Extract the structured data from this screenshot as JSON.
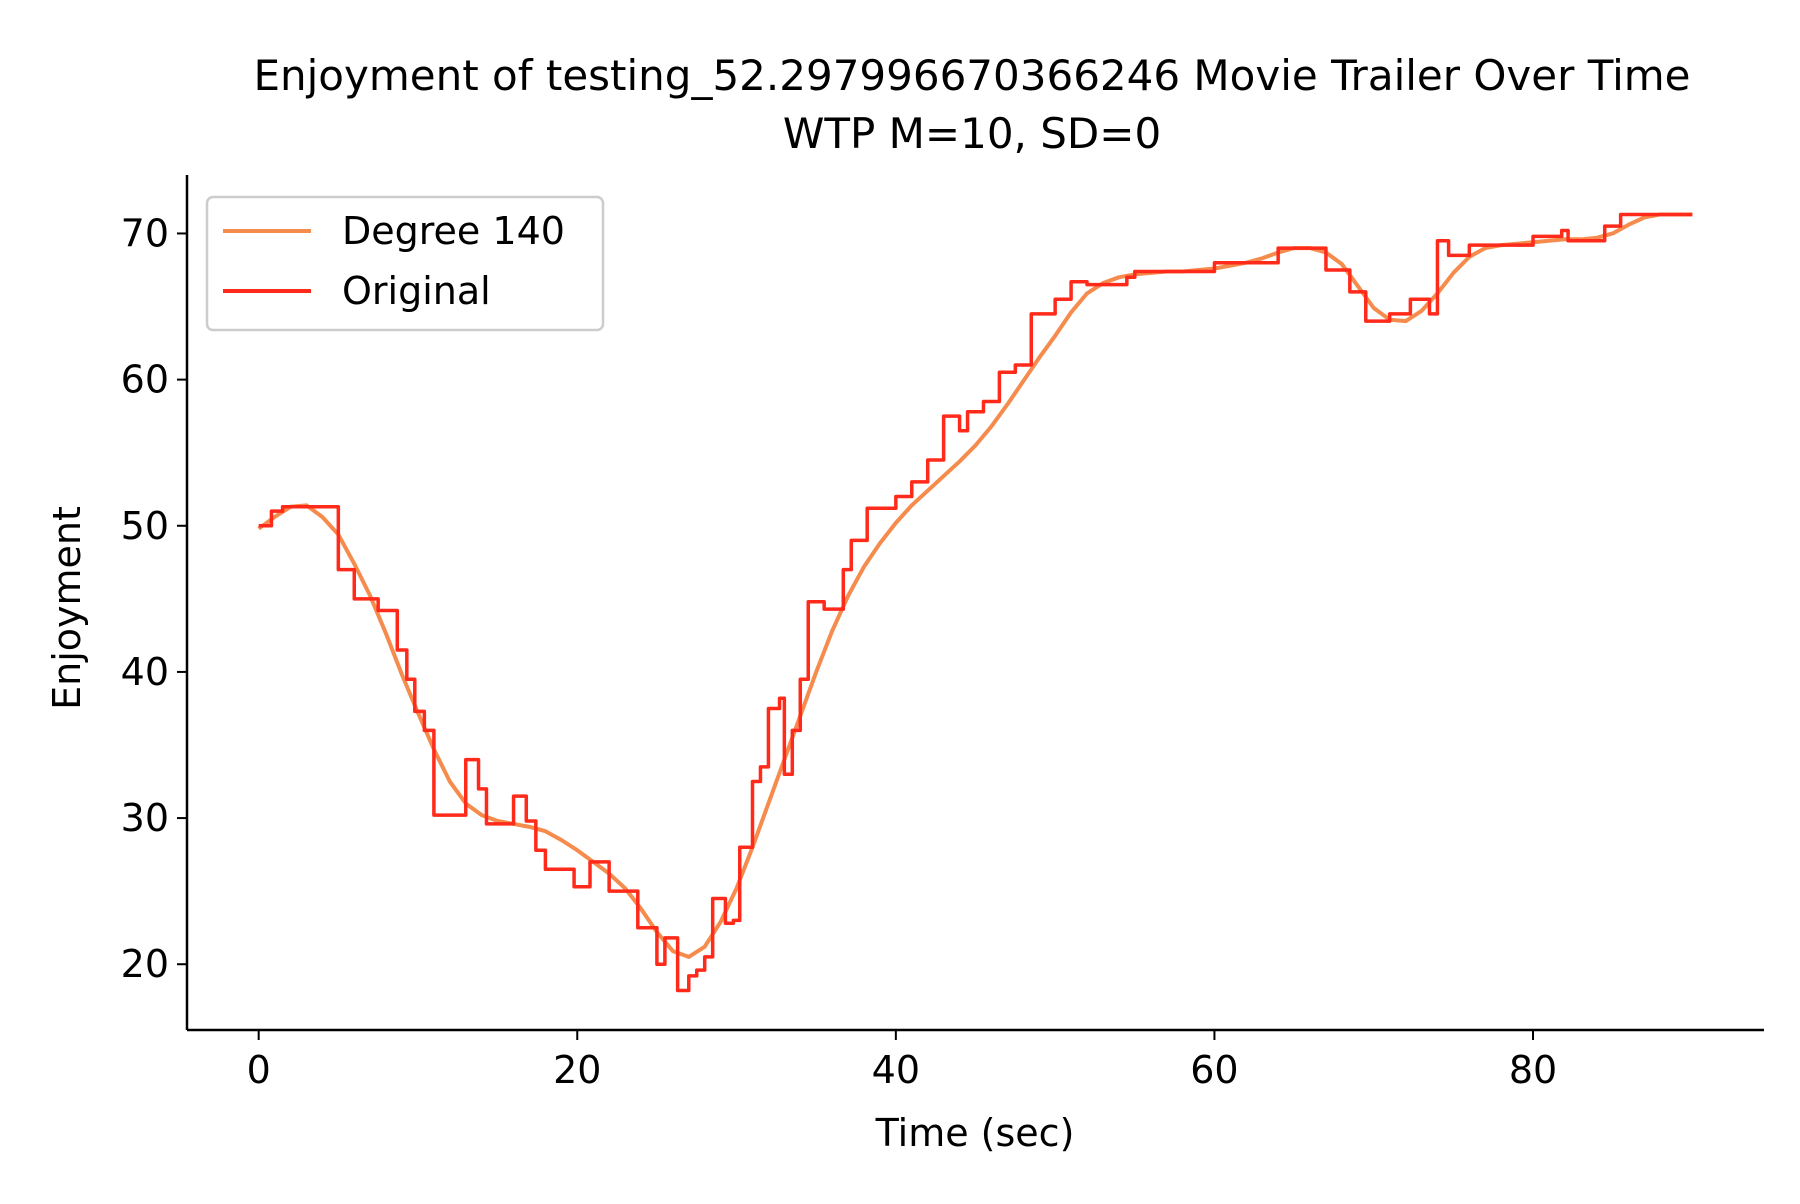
{
  "chart_data": {
    "type": "line",
    "title": "Enjoyment of testing_52.297996670366246 Movie Trailer Over Time",
    "subtitle": "WTP M=10, SD=0",
    "xlabel": "Time (sec)",
    "ylabel": "Enjoyment",
    "xlim": [
      -4.5,
      94.5
    ],
    "ylim": [
      15.5,
      74.0
    ],
    "xticks": [
      0,
      20,
      40,
      60,
      80
    ],
    "yticks": [
      20,
      30,
      40,
      50,
      60,
      70
    ],
    "grid": false,
    "legend_position": "top-left",
    "series": [
      {
        "name": "Degree 140",
        "color": "#f58b4c",
        "points": [
          [
            0,
            49.8
          ],
          [
            1,
            50.6
          ],
          [
            2,
            51.3
          ],
          [
            3,
            51.4
          ],
          [
            4,
            50.6
          ],
          [
            5,
            49.4
          ],
          [
            6,
            47.4
          ],
          [
            7,
            45.2
          ],
          [
            8,
            42.6
          ],
          [
            9,
            39.8
          ],
          [
            10,
            37.2
          ],
          [
            11,
            34.7
          ],
          [
            12,
            32.5
          ],
          [
            13,
            31.0
          ],
          [
            14,
            30.2
          ],
          [
            15,
            29.8
          ],
          [
            16,
            29.6
          ],
          [
            17,
            29.4
          ],
          [
            18,
            29.1
          ],
          [
            19,
            28.5
          ],
          [
            20,
            27.8
          ],
          [
            21,
            27.0
          ],
          [
            22,
            26.2
          ],
          [
            23,
            25.2
          ],
          [
            24,
            23.8
          ],
          [
            25,
            22.2
          ],
          [
            26,
            20.9
          ],
          [
            27,
            20.5
          ],
          [
            28,
            21.2
          ],
          [
            29,
            22.9
          ],
          [
            30,
            25.2
          ],
          [
            31,
            28.0
          ],
          [
            32,
            31.0
          ],
          [
            33,
            34.0
          ],
          [
            34,
            37.0
          ],
          [
            35,
            40.0
          ],
          [
            36,
            42.8
          ],
          [
            37,
            45.2
          ],
          [
            38,
            47.2
          ],
          [
            39,
            48.8
          ],
          [
            40,
            50.2
          ],
          [
            41,
            51.4
          ],
          [
            42,
            52.4
          ],
          [
            43,
            53.4
          ],
          [
            44,
            54.4
          ],
          [
            45,
            55.5
          ],
          [
            46,
            56.8
          ],
          [
            47,
            58.3
          ],
          [
            48,
            59.9
          ],
          [
            49,
            61.5
          ],
          [
            50,
            63.0
          ],
          [
            51,
            64.6
          ],
          [
            52,
            65.9
          ],
          [
            53,
            66.6
          ],
          [
            54,
            67.0
          ],
          [
            55,
            67.2
          ],
          [
            56,
            67.3
          ],
          [
            57,
            67.4
          ],
          [
            58,
            67.4
          ],
          [
            59,
            67.5
          ],
          [
            60,
            67.6
          ],
          [
            61,
            67.8
          ],
          [
            62,
            68.0
          ],
          [
            63,
            68.3
          ],
          [
            64,
            68.7
          ],
          [
            65,
            69.0
          ],
          [
            66,
            69.0
          ],
          [
            67,
            68.7
          ],
          [
            68,
            67.9
          ],
          [
            69,
            66.4
          ],
          [
            70,
            64.9
          ],
          [
            71,
            64.1
          ],
          [
            72,
            64.0
          ],
          [
            73,
            64.7
          ],
          [
            74,
            65.9
          ],
          [
            75,
            67.3
          ],
          [
            76,
            68.4
          ],
          [
            77,
            69.0
          ],
          [
            78,
            69.2
          ],
          [
            79,
            69.3
          ],
          [
            80,
            69.4
          ],
          [
            81,
            69.5
          ],
          [
            82,
            69.6
          ],
          [
            83,
            69.6
          ],
          [
            84,
            69.7
          ],
          [
            85,
            70.0
          ],
          [
            86,
            70.6
          ],
          [
            87,
            71.1
          ],
          [
            88,
            71.3
          ],
          [
            89,
            71.3
          ],
          [
            90,
            71.3
          ]
        ]
      },
      {
        "name": "Original",
        "color": "#ff2a1a",
        "points": [
          [
            0,
            50.0
          ],
          [
            0.8,
            50.0
          ],
          [
            0.8,
            51.0
          ],
          [
            1.5,
            51.0
          ],
          [
            1.5,
            51.3
          ],
          [
            5.0,
            51.3
          ],
          [
            5.0,
            47.0
          ],
          [
            6.0,
            47.0
          ],
          [
            6.0,
            45.0
          ],
          [
            7.5,
            45.0
          ],
          [
            7.5,
            44.2
          ],
          [
            8.7,
            44.2
          ],
          [
            8.7,
            41.5
          ],
          [
            9.3,
            41.5
          ],
          [
            9.3,
            39.5
          ],
          [
            9.8,
            39.5
          ],
          [
            9.8,
            37.3
          ],
          [
            10.4,
            37.3
          ],
          [
            10.4,
            36.0
          ],
          [
            11.0,
            36.0
          ],
          [
            11.0,
            30.2
          ],
          [
            13.0,
            30.2
          ],
          [
            13.0,
            34.0
          ],
          [
            13.8,
            34.0
          ],
          [
            13.8,
            32.0
          ],
          [
            14.3,
            32.0
          ],
          [
            14.3,
            29.6
          ],
          [
            16.0,
            29.6
          ],
          [
            16.0,
            31.5
          ],
          [
            16.8,
            31.5
          ],
          [
            16.8,
            29.8
          ],
          [
            17.4,
            29.8
          ],
          [
            17.4,
            27.8
          ],
          [
            18.0,
            27.8
          ],
          [
            18.0,
            26.5
          ],
          [
            19.8,
            26.5
          ],
          [
            19.8,
            25.3
          ],
          [
            20.8,
            25.3
          ],
          [
            20.8,
            27.0
          ],
          [
            22.0,
            27.0
          ],
          [
            22.0,
            25.0
          ],
          [
            23.8,
            25.0
          ],
          [
            23.8,
            22.5
          ],
          [
            25.0,
            22.5
          ],
          [
            25.0,
            20.0
          ],
          [
            25.5,
            20.0
          ],
          [
            25.5,
            21.8
          ],
          [
            26.3,
            21.8
          ],
          [
            26.3,
            18.2
          ],
          [
            27.0,
            18.2
          ],
          [
            27.0,
            19.2
          ],
          [
            27.5,
            19.2
          ],
          [
            27.5,
            19.6
          ],
          [
            28.0,
            19.6
          ],
          [
            28.0,
            20.5
          ],
          [
            28.5,
            20.5
          ],
          [
            28.5,
            24.5
          ],
          [
            29.3,
            24.5
          ],
          [
            29.3,
            22.8
          ],
          [
            29.8,
            22.8
          ],
          [
            29.8,
            23.0
          ],
          [
            30.2,
            23.0
          ],
          [
            30.2,
            28.0
          ],
          [
            31.0,
            28.0
          ],
          [
            31.0,
            32.5
          ],
          [
            31.5,
            32.5
          ],
          [
            31.5,
            33.5
          ],
          [
            32.0,
            33.5
          ],
          [
            32.0,
            37.5
          ],
          [
            32.7,
            37.5
          ],
          [
            32.7,
            38.2
          ],
          [
            33.0,
            38.2
          ],
          [
            33.0,
            33.0
          ],
          [
            33.5,
            33.0
          ],
          [
            33.5,
            36.0
          ],
          [
            34.0,
            36.0
          ],
          [
            34.0,
            39.5
          ],
          [
            34.5,
            39.5
          ],
          [
            34.5,
            44.8
          ],
          [
            35.5,
            44.8
          ],
          [
            35.5,
            44.3
          ],
          [
            36.7,
            44.3
          ],
          [
            36.7,
            47.0
          ],
          [
            37.2,
            47.0
          ],
          [
            37.2,
            49.0
          ],
          [
            38.2,
            49.0
          ],
          [
            38.2,
            51.2
          ],
          [
            40.0,
            51.2
          ],
          [
            40.0,
            52.0
          ],
          [
            41.0,
            52.0
          ],
          [
            41.0,
            53.0
          ],
          [
            42.0,
            53.0
          ],
          [
            42.0,
            54.5
          ],
          [
            43.0,
            54.5
          ],
          [
            43.0,
            57.5
          ],
          [
            44.0,
            57.5
          ],
          [
            44.0,
            56.5
          ],
          [
            44.5,
            56.5
          ],
          [
            44.5,
            57.8
          ],
          [
            45.5,
            57.8
          ],
          [
            45.5,
            58.5
          ],
          [
            46.5,
            58.5
          ],
          [
            46.5,
            60.5
          ],
          [
            47.5,
            60.5
          ],
          [
            47.5,
            61.0
          ],
          [
            48.5,
            61.0
          ],
          [
            48.5,
            64.5
          ],
          [
            50.0,
            64.5
          ],
          [
            50.0,
            65.5
          ],
          [
            51.0,
            65.5
          ],
          [
            51.0,
            66.7
          ],
          [
            52.0,
            66.7
          ],
          [
            52.0,
            66.5
          ],
          [
            54.5,
            66.5
          ],
          [
            54.5,
            67.0
          ],
          [
            55.0,
            67.0
          ],
          [
            55.0,
            67.4
          ],
          [
            60.0,
            67.4
          ],
          [
            60.0,
            68.0
          ],
          [
            64.0,
            68.0
          ],
          [
            64.0,
            69.0
          ],
          [
            67.0,
            69.0
          ],
          [
            67.0,
            67.5
          ],
          [
            68.5,
            67.5
          ],
          [
            68.5,
            66.0
          ],
          [
            69.5,
            66.0
          ],
          [
            69.5,
            64.0
          ],
          [
            71.0,
            64.0
          ],
          [
            71.0,
            64.5
          ],
          [
            72.3,
            64.5
          ],
          [
            72.3,
            65.5
          ],
          [
            73.5,
            65.5
          ],
          [
            73.5,
            64.5
          ],
          [
            74.0,
            64.5
          ],
          [
            74.0,
            69.5
          ],
          [
            74.7,
            69.5
          ],
          [
            74.7,
            68.5
          ],
          [
            76.0,
            68.5
          ],
          [
            76.0,
            69.2
          ],
          [
            80.0,
            69.2
          ],
          [
            80.0,
            69.8
          ],
          [
            81.8,
            69.8
          ],
          [
            81.8,
            70.2
          ],
          [
            82.2,
            70.2
          ],
          [
            82.2,
            69.5
          ],
          [
            84.5,
            69.5
          ],
          [
            84.5,
            70.5
          ],
          [
            85.5,
            70.5
          ],
          [
            85.5,
            71.3
          ],
          [
            90.0,
            71.3
          ]
        ]
      }
    ]
  }
}
